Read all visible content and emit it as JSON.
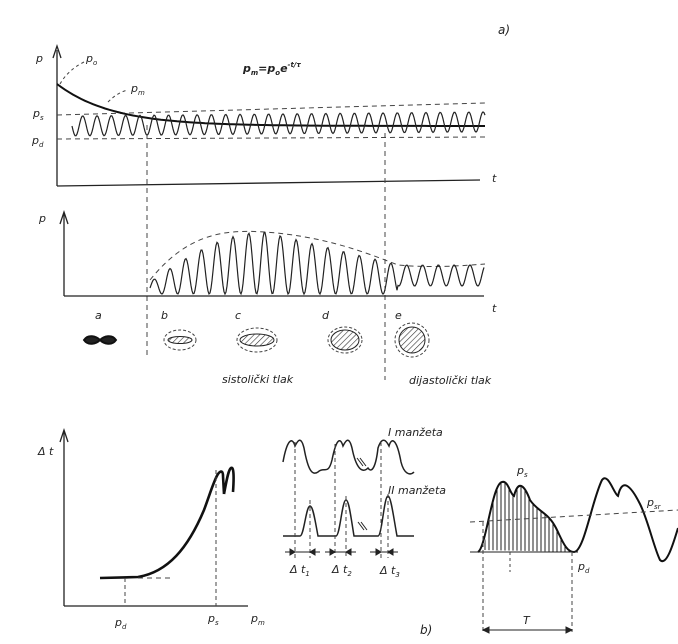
{
  "top": {
    "panel_tag": "a)",
    "formula": {
      "lhs": "p",
      "lhs_sub": "m",
      "eq": "=p",
      "eq_sub": "o",
      "base": "e",
      "exp": "-t/τ"
    },
    "graph1": {
      "p": "p",
      "t": "t",
      "po": "p",
      "po_sub": "o",
      "pm": "p",
      "pm_sub": "m",
      "ps": "p",
      "ps_sub": "s",
      "pd": "p",
      "pd_sub": "d"
    },
    "graph2": {
      "p": "p",
      "t": "t"
    },
    "phases": [
      "a",
      "b",
      "c",
      "d",
      "e"
    ],
    "sistolicki": "sistolički tlak",
    "dijastolicki": "dijastolički tlak"
  },
  "bottom": {
    "panel_tag": "b)",
    "left": {
      "yaxis": "Δ t",
      "pd": "p",
      "pd_sub": "d",
      "ps": "p",
      "ps_sub": "s",
      "pm": "p",
      "pm_sub": "m"
    },
    "middle": {
      "cuff1": "I manžeta",
      "cuff2": "II manžeta",
      "dt1": "Δ t",
      "dt1_sub": "1",
      "dt2": "Δ t",
      "dt2_sub": "2",
      "dt3": "Δ t",
      "dt3_sub": "3"
    },
    "right": {
      "ps": "p",
      "ps_sub": "s",
      "pd": "p",
      "pd_sub": "d",
      "psr": "p",
      "psr_sub": "sr",
      "T": "T"
    }
  }
}
